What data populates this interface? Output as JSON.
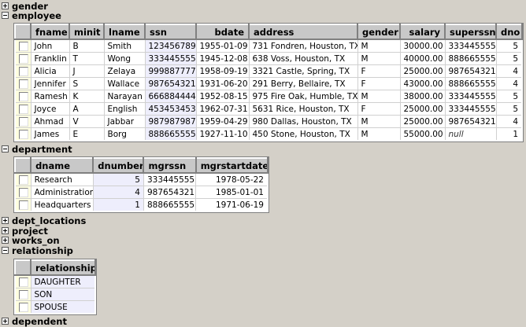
{
  "sections": [
    {
      "name": "gender",
      "expanded": false
    },
    {
      "name": "employee",
      "expanded": true
    },
    {
      "name": "department",
      "expanded": true
    },
    {
      "name": "dept_locations",
      "expanded": false
    },
    {
      "name": "project",
      "expanded": false
    },
    {
      "name": "works_on",
      "expanded": false
    },
    {
      "name": "relationship",
      "expanded": true
    },
    {
      "name": "dependent",
      "expanded": false
    }
  ],
  "employee": {
    "columns": [
      "fname",
      "minit",
      "lname",
      "ssn",
      "bdate",
      "address",
      "gender",
      "salary",
      "superssn",
      "dno"
    ],
    "rows": [
      [
        "John",
        "B",
        "Smith",
        "123456789",
        "1955-01-09",
        "731 Fondren, Houston, TX",
        "M",
        "30000.00",
        "333445555",
        "5"
      ],
      [
        "Franklin",
        "T",
        "Wong",
        "333445555",
        "1945-12-08",
        "638 Voss, Houston, TX",
        "M",
        "40000.00",
        "888665555",
        "5"
      ],
      [
        "Alicia",
        "J",
        "Zelaya",
        "999887777",
        "1958-09-19",
        "3321 Castle, Spring, TX",
        "F",
        "25000.00",
        "987654321",
        "4"
      ],
      [
        "Jennifer",
        "S",
        "Wallace",
        "987654321",
        "1931-06-20",
        "291 Berry, Bellaire, TX",
        "F",
        "43000.00",
        "888665555",
        "4"
      ],
      [
        "Ramesh",
        "K",
        "Narayan",
        "666884444",
        "1952-08-15",
        "975 Fire Oak, Humble, TX",
        "M",
        "38000.00",
        "333445555",
        "5"
      ],
      [
        "Joyce",
        "A",
        "English",
        "453453453",
        "1962-07-31",
        "5631 Rice, Houston, TX",
        "F",
        "25000.00",
        "333445555",
        "5"
      ],
      [
        "Ahmad",
        "V",
        "Jabbar",
        "987987987",
        "1959-04-29",
        "980 Dallas, Houston, TX",
        "M",
        "25000.00",
        "987654321",
        "4"
      ],
      [
        "James",
        "E",
        "Borg",
        "888665555",
        "1927-11-10",
        "450 Stone, Houston, TX",
        "M",
        "55000.00",
        "null",
        "1"
      ]
    ]
  },
  "department": {
    "columns": [
      "dname",
      "dnumber",
      "mgrssn",
      "mgrstartdate"
    ],
    "rows": [
      [
        "Research",
        "5",
        "333445555",
        "1978-05-22"
      ],
      [
        "Administration",
        "4",
        "987654321",
        "1985-01-01"
      ],
      [
        "Headquarters",
        "1",
        "888665555",
        "1971-06-19"
      ]
    ]
  },
  "relationship": {
    "columns": [
      "relationship"
    ],
    "rows": [
      [
        "DAUGHTER"
      ],
      [
        "SON"
      ],
      [
        "SPOUSE"
      ]
    ]
  },
  "colors": {
    "background": "#d4d0c8",
    "key_column": "#eeeefc",
    "checkbox_column": "#ffffe0",
    "header": "#c8c8c8"
  }
}
